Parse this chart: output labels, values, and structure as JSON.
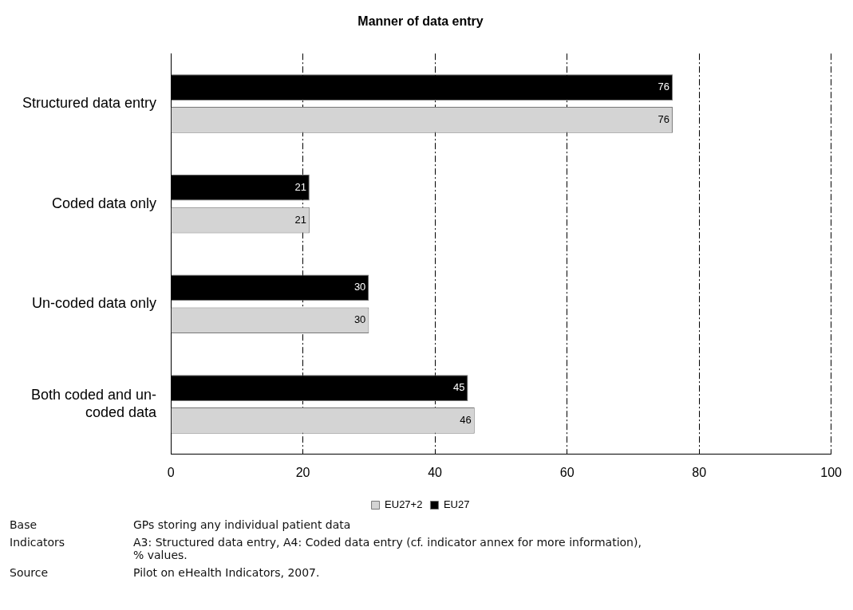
{
  "chart_data": {
    "type": "bar",
    "orientation": "horizontal",
    "title": "Manner of data entry",
    "categories": [
      "Structured data entry",
      "Coded data only",
      "Un-coded data only",
      "Both coded and un-coded data"
    ],
    "series": [
      {
        "name": "EU27+2",
        "color": "#d4d4d4",
        "values": [
          76,
          21,
          30,
          46
        ]
      },
      {
        "name": "EU27",
        "color": "#000000",
        "values": [
          76,
          21,
          30,
          45
        ]
      }
    ],
    "xlim": [
      0,
      100
    ],
    "xticks": [
      0,
      20,
      40,
      60,
      80,
      100
    ],
    "grid": "x",
    "legend": "bottom",
    "data_labels": true,
    "annotations": [
      "Base",
      "GPs storing any individual patient data",
      "Indicators",
      "A3: Structured data entry, A4: Coded data entry (cf. indicator annex for more information), % values.",
      "Source",
      "Pilot on eHealth Indicators, 2007."
    ]
  }
}
